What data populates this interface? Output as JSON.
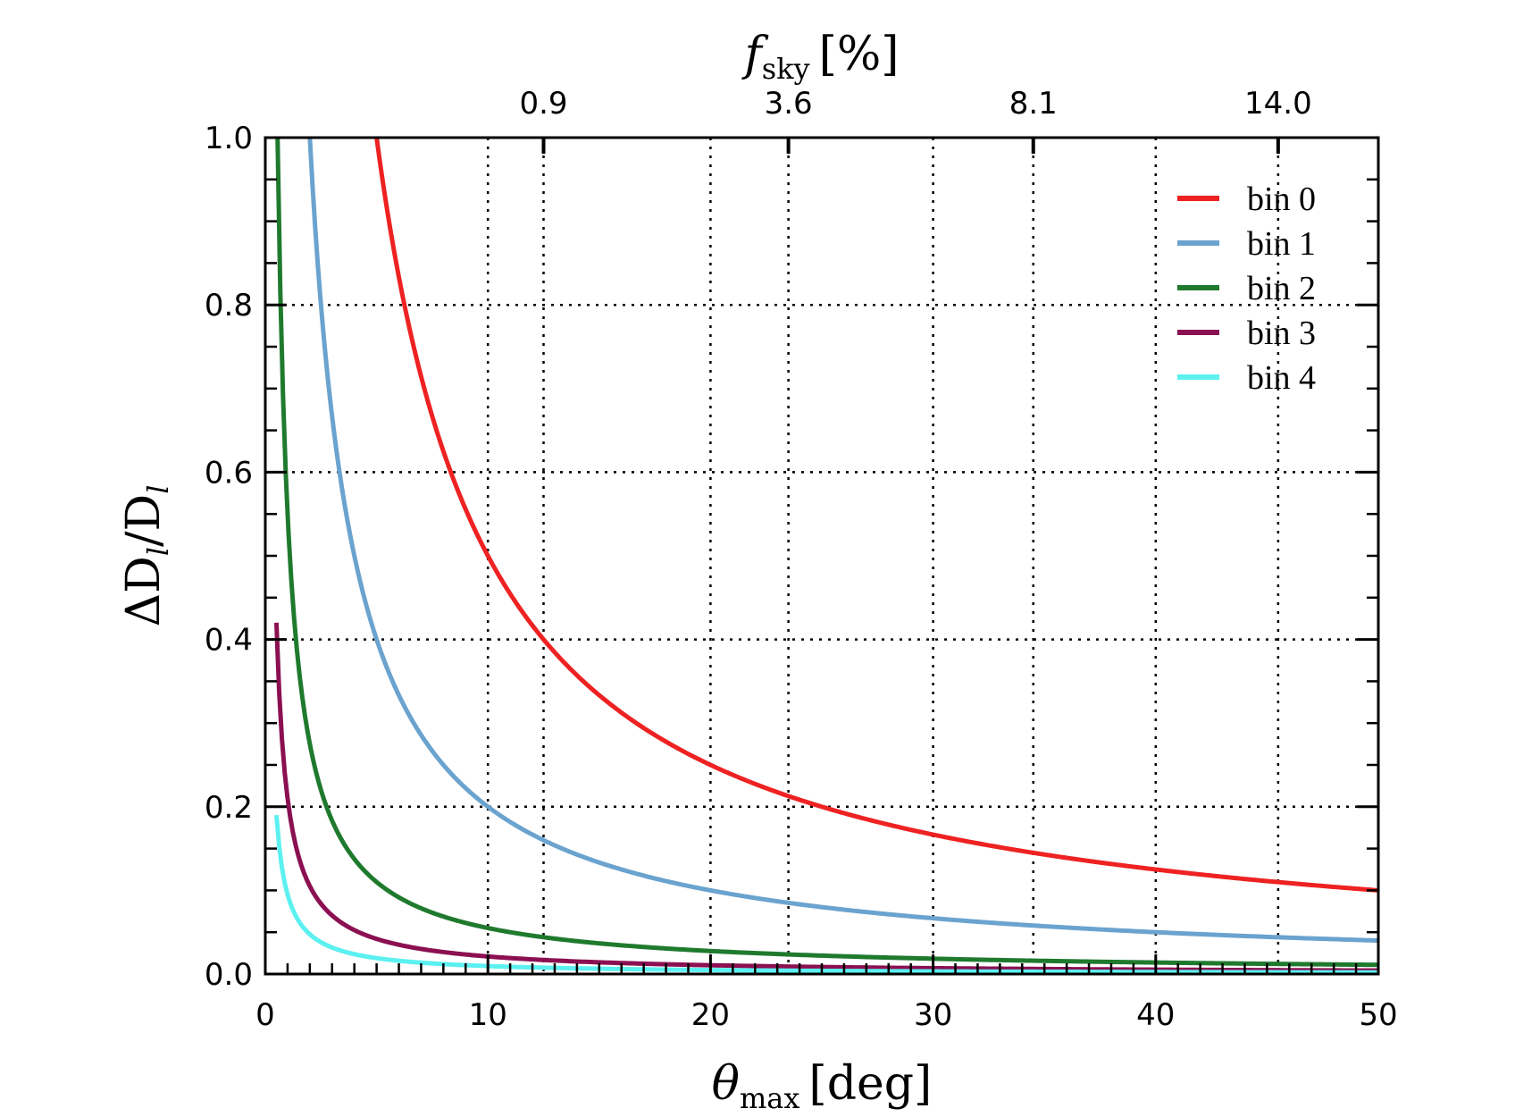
{
  "chart_data": {
    "type": "line",
    "xlabel": {
      "symbol": "θ",
      "subscript": "max",
      "unit": "[deg]"
    },
    "ylabel": {
      "main": "ΔD",
      "sub1": "l",
      "slash": "/D",
      "sub2": "l"
    },
    "top_label": {
      "symbol": "f",
      "subscript": "sky",
      "unit": "[%]"
    },
    "xlim": [
      0,
      50
    ],
    "ylim": [
      0,
      1
    ],
    "x_ticks": [
      "0",
      "10",
      "20",
      "30",
      "40",
      "50"
    ],
    "y_ticks": [
      "0.0",
      "0.2",
      "0.4",
      "0.6",
      "0.8",
      "1.0"
    ],
    "top_ticks": [
      {
        "x": 12.5,
        "label": "0.9"
      },
      {
        "x": 23.5,
        "label": "3.6"
      },
      {
        "x": 34.5,
        "label": "8.1"
      },
      {
        "x": 45.5,
        "label": "14.0"
      }
    ],
    "grid": "dotted",
    "legend_position": "top-right",
    "series": [
      {
        "name": "bin 0",
        "color": "#ee2222",
        "amplitude": 5.0,
        "x_start": 5.0,
        "x_end": 50
      },
      {
        "name": "bin 1",
        "color": "#6ba3cf",
        "amplitude": 2.0,
        "x_start": 2.0,
        "x_end": 50
      },
      {
        "name": "bin 2",
        "color": "#1f7a2e",
        "amplitude": 0.55,
        "x_start": 0.55,
        "x_end": 50
      },
      {
        "name": "bin 3",
        "color": "#8b1052",
        "amplitude": 0.21,
        "x_start": 0.5,
        "x_end": 50
      },
      {
        "name": "bin 4",
        "color": "#5cf0f0",
        "amplitude": 0.095,
        "x_start": 0.5,
        "x_end": 50
      }
    ]
  }
}
